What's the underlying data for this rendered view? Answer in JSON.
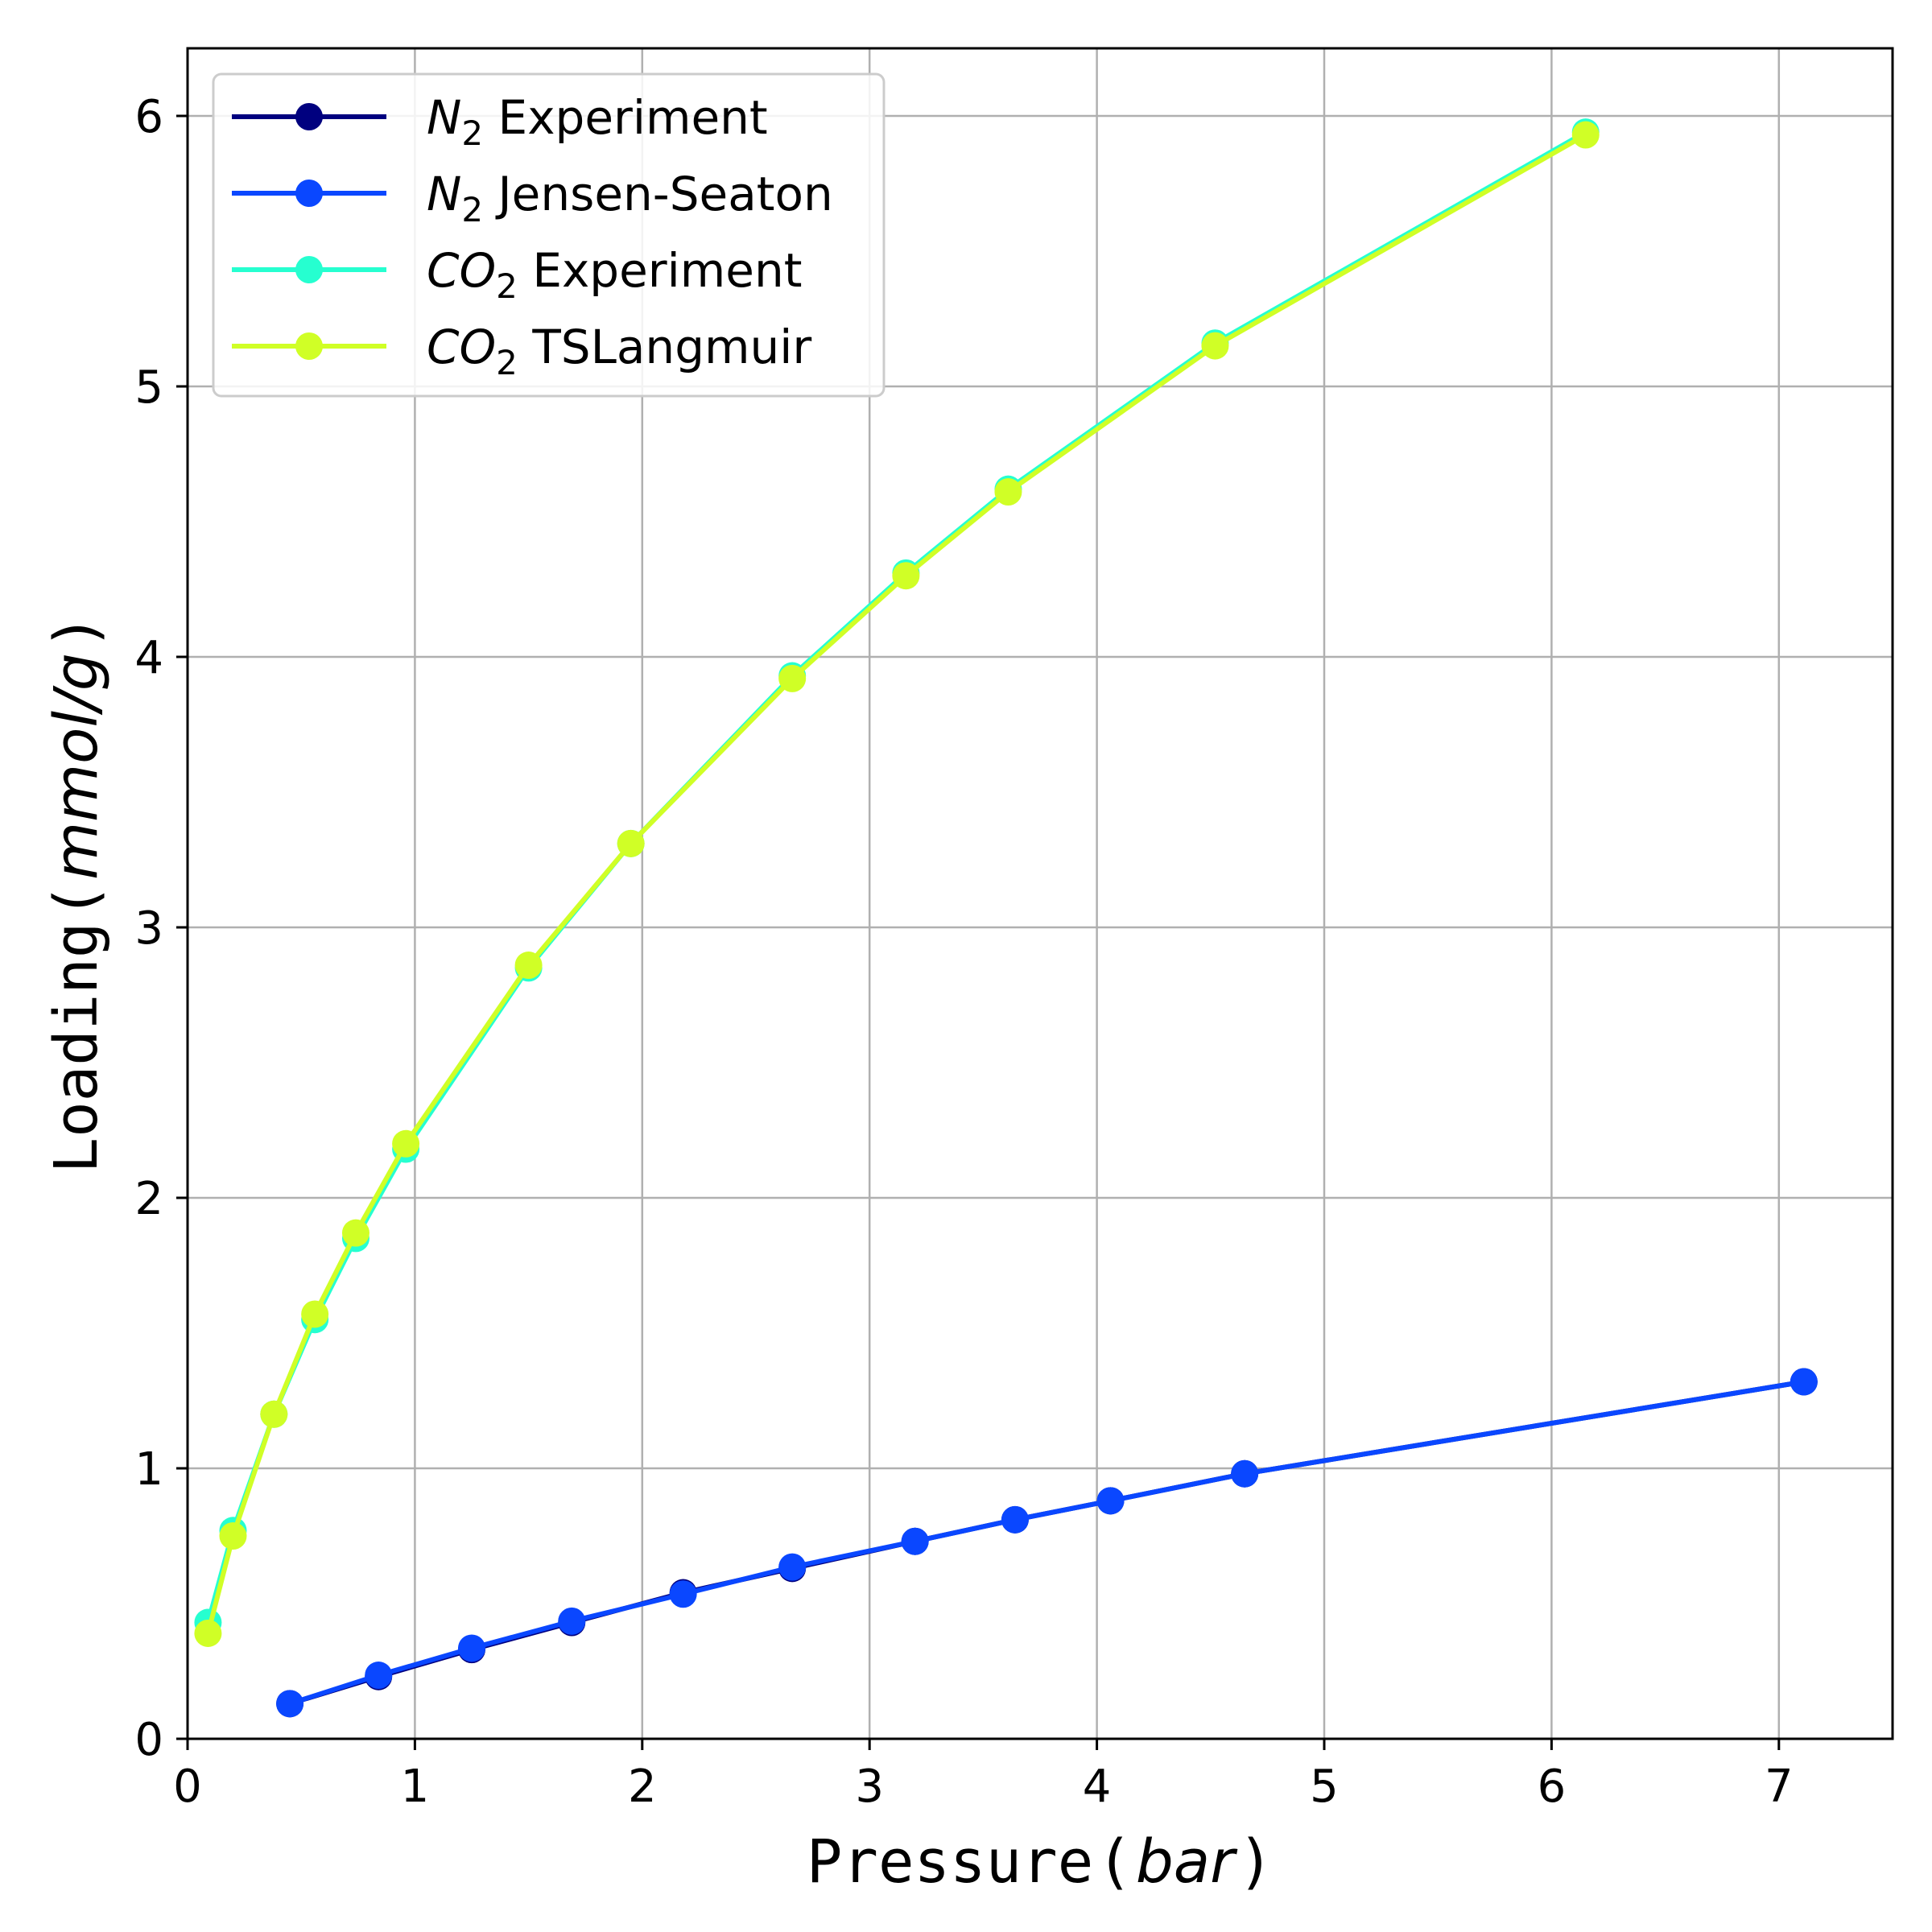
{
  "chart_data": {
    "type": "line",
    "xlabel": {
      "text": "Pressure",
      "unit": "bar"
    },
    "ylabel": {
      "text": "Loading",
      "unit": "mmol/g"
    },
    "xlim": [
      0,
      7.5
    ],
    "ylim": [
      0,
      6.25
    ],
    "xticks": [
      0,
      1,
      2,
      3,
      4,
      5,
      6,
      7
    ],
    "yticks": [
      0,
      1,
      2,
      3,
      4,
      5,
      6
    ],
    "grid": true,
    "legend_position": "top-left",
    "series": [
      {
        "name": "Experiment",
        "species_base": "N",
        "species_sub": "2",
        "color": "#00007f",
        "x": [
          0.45,
          0.84,
          1.25,
          1.69,
          2.18,
          2.66,
          3.2,
          3.64,
          4.06,
          4.65,
          7.11
        ],
        "y": [
          0.13,
          0.23,
          0.33,
          0.43,
          0.54,
          0.63,
          0.73,
          0.81,
          0.88,
          0.98,
          1.32
        ]
      },
      {
        "name": "Jensen-Seaton",
        "species_base": "N",
        "species_sub": "2",
        "color": "#0a47ff",
        "x": [
          0.45,
          0.84,
          1.25,
          1.69,
          2.18,
          2.66,
          3.2,
          3.64,
          4.06,
          4.65,
          7.11
        ],
        "y": [
          0.13,
          0.235,
          0.335,
          0.435,
          0.535,
          0.635,
          0.73,
          0.81,
          0.88,
          0.98,
          1.32
        ]
      },
      {
        "name": "Experiment",
        "species_base": "CO",
        "species_sub": "2",
        "color": "#26ffd0",
        "x": [
          0.09,
          0.2,
          0.38,
          0.56,
          0.74,
          0.96,
          1.5,
          1.95,
          2.66,
          3.16,
          3.61,
          4.52,
          6.15
        ],
        "y": [
          0.43,
          0.77,
          1.2,
          1.55,
          1.85,
          2.18,
          2.85,
          3.31,
          3.93,
          4.31,
          4.62,
          5.16,
          5.94
        ]
      },
      {
        "name": "TSLangmuir",
        "species_base": "CO",
        "species_sub": "2",
        "color": "#d0ff26",
        "x": [
          0.09,
          0.2,
          0.38,
          0.56,
          0.74,
          0.96,
          1.5,
          1.95,
          2.66,
          3.16,
          3.61,
          4.52,
          6.15
        ],
        "y": [
          0.39,
          0.75,
          1.2,
          1.57,
          1.87,
          2.2,
          2.86,
          3.31,
          3.92,
          4.3,
          4.61,
          5.15,
          5.93
        ]
      }
    ]
  }
}
